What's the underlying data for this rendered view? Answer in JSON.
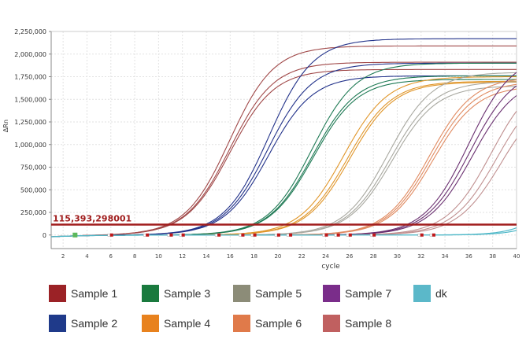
{
  "chart_data": {
    "type": "line",
    "title": "",
    "xlabel": "cycle",
    "ylabel": "ΔRn",
    "xlim": [
      1,
      40
    ],
    "ylim": [
      -150000,
      2250000
    ],
    "xticks": [
      2,
      4,
      6,
      8,
      10,
      12,
      14,
      16,
      18,
      20,
      22,
      24,
      26,
      28,
      30,
      32,
      34,
      36,
      38,
      40
    ],
    "yticks": [
      0,
      250000,
      500000,
      750000,
      1000000,
      1250000,
      1500000,
      1750000,
      2000000,
      2250000
    ],
    "ytick_labels": [
      "0",
      "250,000",
      "500,000",
      "750,000",
      "1,000,000",
      "1,250,000",
      "1,500,000",
      "1,750,000",
      "2,000,000",
      "2,250,000"
    ],
    "grid": true,
    "legend_placement": "bottom",
    "threshold": {
      "value": 115393,
      "label": "115,393,298001",
      "color": "#a01c1c"
    },
    "baseline_marker_cycles": [
      6,
      9,
      11,
      12,
      15,
      17,
      18,
      20,
      21,
      24,
      25,
      26,
      28,
      32,
      33
    ],
    "start_marker_cycle": 3,
    "series": [
      {
        "name": "Sample 1",
        "color": "#9b2226",
        "curve_color": "#a04848",
        "ct": [
          10.7,
          10.9,
          11.0
        ],
        "plateau": [
          2090000,
          1910000,
          1830000
        ]
      },
      {
        "name": "Sample 2",
        "color": "#1f3a8a",
        "curve_color": "#22328a",
        "ct": [
          13.9,
          14.1,
          14.3
        ],
        "plateau": [
          2170000,
          1900000,
          1760000
        ]
      },
      {
        "name": "Sample 3",
        "color": "#1a7a3e",
        "curve_color": "#1f7a55",
        "ct": [
          17.8,
          18.0,
          18.1
        ],
        "plateau": [
          1900000,
          1760000,
          1720000
        ]
      },
      {
        "name": "Sample 4",
        "color": "#e8821e",
        "curve_color": "#e0962a",
        "ct": [
          20.6,
          21.0,
          21.2
        ],
        "plateau": [
          1750000,
          1700000,
          1690000
        ]
      },
      {
        "name": "Sample 5",
        "color": "#8c8c78",
        "curve_color": "#a8a8a0",
        "ct": [
          24.3,
          24.6,
          24.8
        ],
        "plateau": [
          1800000,
          1700000,
          1650000
        ]
      },
      {
        "name": "Sample 6",
        "color": "#e07a4a",
        "curve_color": "#e08a60",
        "ct": [
          27.8,
          28.0,
          28.2
        ],
        "plateau": [
          1750000,
          1700000,
          1650000
        ]
      },
      {
        "name": "Sample 7",
        "color": "#7a2d8a",
        "curve_color": "#6a3070",
        "ct": [
          30.8,
          31.1,
          31.4
        ],
        "plateau": [
          2000000,
          1850000,
          1750000
        ]
      },
      {
        "name": "Sample 8",
        "color": "#c06060",
        "curve_color": "#c09090",
        "ct": [
          32.9,
          33.5,
          34.0
        ],
        "plateau": [
          1800000,
          1700000,
          1600000
        ]
      },
      {
        "name": "dk",
        "color": "#5bb8c9",
        "curve_color": "#4fb8c8",
        "ct": [],
        "plateau": []
      }
    ],
    "dk_end_values": [
      80000,
      50000
    ]
  }
}
